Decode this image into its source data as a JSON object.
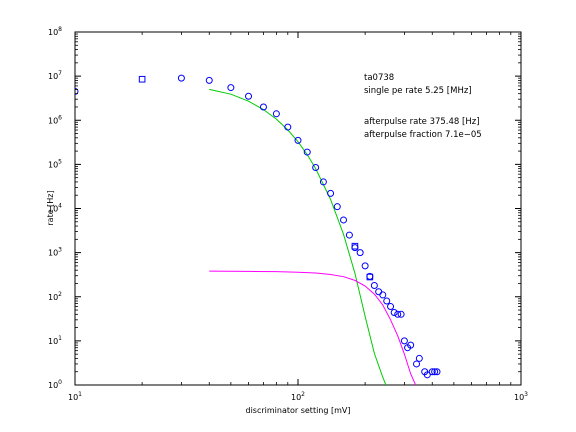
{
  "chart_data": {
    "type": "scatter",
    "xscale": "log",
    "yscale": "log",
    "xlim": [
      10,
      1000
    ],
    "ylim": [
      1,
      100000000
    ],
    "xlabel": "discriminator setting [mV]",
    "ylabel": "rate [Hz]",
    "grid": false,
    "x_ticks": [
      {
        "value": 10,
        "base": "10",
        "exp": "1"
      },
      {
        "value": 100,
        "base": "10",
        "exp": "2"
      },
      {
        "value": 1000,
        "base": "10",
        "exp": "3"
      }
    ],
    "y_ticks": [
      {
        "value": 1,
        "base": "10",
        "exp": "0"
      },
      {
        "value": 10,
        "base": "10",
        "exp": "1"
      },
      {
        "value": 100,
        "base": "10",
        "exp": "2"
      },
      {
        "value": 1000,
        "base": "10",
        "exp": "3"
      },
      {
        "value": 10000,
        "base": "10",
        "exp": "4"
      },
      {
        "value": 100000,
        "base": "10",
        "exp": "5"
      },
      {
        "value": 1000000,
        "base": "10",
        "exp": "6"
      },
      {
        "value": 10000000,
        "base": "10",
        "exp": "7"
      },
      {
        "value": 100000000,
        "base": "10",
        "exp": "8"
      }
    ],
    "annotations": [
      "ta0738",
      "single pe rate 5.25 [MHz]",
      "afterpulse rate 375.48 [Hz]",
      "afterpulse fraction 7.1e−05"
    ],
    "series": [
      {
        "marker": "circle",
        "color": "#0000ff",
        "x": [
          10,
          30,
          40,
          50,
          60,
          70,
          80,
          90,
          100,
          110,
          120,
          130,
          140,
          150,
          160,
          170,
          180,
          190,
          200,
          210,
          220,
          230,
          240,
          250,
          260,
          270,
          280,
          290,
          300,
          310,
          320,
          340,
          350,
          370,
          380,
          400,
          410,
          420
        ],
        "y": [
          4500000,
          9000000,
          8000000,
          5500000,
          3500000,
          2000000,
          1400000,
          700000,
          350000,
          190000,
          85000,
          40000,
          22000,
          11000,
          5500,
          2500,
          1300,
          1000,
          500,
          290,
          180,
          130,
          110,
          80,
          60,
          44,
          40,
          40,
          10,
          7,
          8,
          3,
          4,
          2,
          1.7,
          2,
          2,
          2
        ]
      },
      {
        "marker": "square",
        "color": "#0000ff",
        "x": [
          20,
          180,
          210
        ],
        "y": [
          8500000,
          1400,
          280
        ]
      },
      {
        "marker": "line",
        "color": "#00cc00",
        "x": [
          40,
          50,
          60,
          70,
          80,
          90,
          100,
          110,
          120,
          140,
          160,
          180,
          200,
          220,
          240,
          250
        ],
        "y": [
          5000000,
          3900000,
          2700000,
          1750000,
          1060000,
          605000,
          326000,
          166000,
          80000,
          16000,
          2600,
          340,
          36,
          5.2,
          1.5,
          0.9
        ]
      },
      {
        "marker": "line",
        "color": "#ff00ff",
        "x": [
          40,
          60,
          80,
          100,
          120,
          140,
          160,
          180,
          200,
          220,
          240,
          260,
          280,
          300,
          320,
          340,
          345
        ],
        "y": [
          380,
          375,
          370,
          360,
          345,
          320,
          285,
          235,
          175,
          115,
          65,
          30,
          13,
          5,
          1.8,
          0.9,
          0.8
        ]
      }
    ]
  }
}
